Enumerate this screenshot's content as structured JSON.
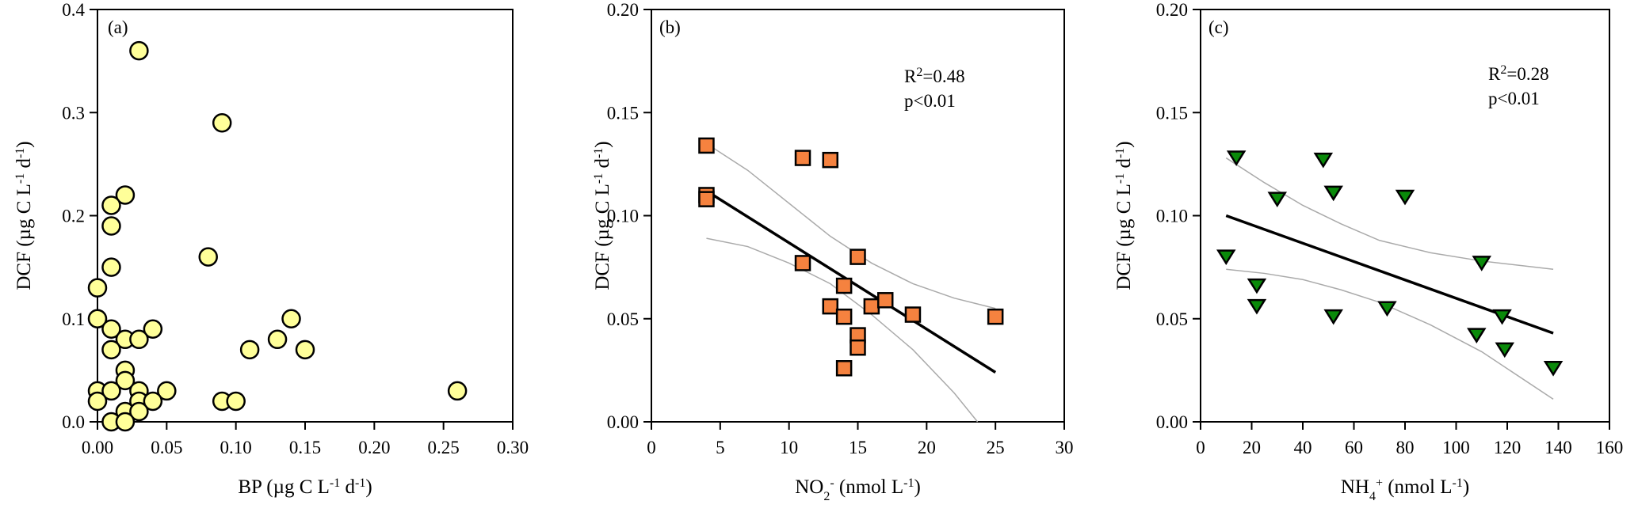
{
  "chart_data": [
    {
      "type": "scatter",
      "panel_label": "(a)",
      "xlabel": [
        {
          "t": "BP (µg C L"
        },
        {
          "t": "-1",
          "sup": true
        },
        {
          "t": " d"
        },
        {
          "t": "-1",
          "sup": true
        },
        {
          "t": ")"
        }
      ],
      "ylabel": [
        {
          "t": "DCF (µg C L"
        },
        {
          "t": "-1",
          "sup": true
        },
        {
          "t": " d"
        },
        {
          "t": "-1",
          "sup": true
        },
        {
          "t": ")"
        }
      ],
      "xlim": [
        0,
        0.3
      ],
      "ylim": [
        0,
        0.4
      ],
      "xticks": [
        "0.00",
        "0.05",
        "0.10",
        "0.15",
        "0.20",
        "0.25",
        "0.30"
      ],
      "yticks": [
        "0.0",
        "0.1",
        "0.2",
        "0.3",
        "0.4"
      ],
      "marker": "circle",
      "color": "#FFFF99",
      "x": [
        0.03,
        0.09,
        0.02,
        0.01,
        0.01,
        0.08,
        0.01,
        0.0,
        0.0,
        0.14,
        0.01,
        0.04,
        0.02,
        0.03,
        0.13,
        0.01,
        0.11,
        0.15,
        0.02,
        0.02,
        0.0,
        0.01,
        0.03,
        0.05,
        0.26,
        0.0,
        0.03,
        0.04,
        0.09,
        0.1,
        0.02,
        0.03,
        0.01,
        0.02
      ],
      "y": [
        0.36,
        0.29,
        0.22,
        0.21,
        0.19,
        0.16,
        0.15,
        0.13,
        0.1,
        0.1,
        0.09,
        0.09,
        0.08,
        0.08,
        0.08,
        0.07,
        0.07,
        0.07,
        0.05,
        0.04,
        0.03,
        0.03,
        0.03,
        0.03,
        0.03,
        0.02,
        0.02,
        0.02,
        0.02,
        0.02,
        0.01,
        0.01,
        0.0,
        0.0
      ]
    },
    {
      "type": "scatter",
      "panel_label": "(b)",
      "annotation": {
        "r2_prefix": "R",
        "r2_sup": "2",
        "r2_value": "=0.48",
        "p": "p<0.01"
      },
      "xlabel": [
        {
          "t": "NO"
        },
        {
          "t": "2",
          "sub": true
        },
        {
          "t": "-",
          "sup": true
        },
        {
          "t": " (nmol L"
        },
        {
          "t": "-1",
          "sup": true
        },
        {
          "t": ")"
        }
      ],
      "ylabel": [
        {
          "t": "DCF (µg C L"
        },
        {
          "t": "-1",
          "sup": true
        },
        {
          "t": " d"
        },
        {
          "t": "-1",
          "sup": true
        },
        {
          "t": ")"
        }
      ],
      "xlim": [
        0,
        30
      ],
      "ylim": [
        0,
        0.2
      ],
      "xticks": [
        "0",
        "5",
        "10",
        "15",
        "20",
        "25",
        "30"
      ],
      "yticks": [
        "0.00",
        "0.05",
        "0.10",
        "0.15",
        "0.20"
      ],
      "marker": "square",
      "color": "#F5823F",
      "x": [
        4,
        4,
        4,
        11,
        11,
        13,
        13,
        14,
        14,
        14,
        15,
        15,
        15,
        16,
        17,
        19,
        25
      ],
      "y": [
        0.134,
        0.11,
        0.108,
        0.128,
        0.077,
        0.127,
        0.056,
        0.066,
        0.051,
        0.026,
        0.08,
        0.042,
        0.036,
        0.056,
        0.059,
        0.052,
        0.051
      ],
      "fit": {
        "x": [
          4,
          25
        ],
        "y": [
          0.112,
          0.024
        ]
      },
      "ci_upper": {
        "x": [
          4,
          7,
          10,
          13,
          16,
          19,
          22,
          25
        ],
        "y": [
          0.135,
          0.122,
          0.106,
          0.09,
          0.077,
          0.067,
          0.06,
          0.055
        ]
      },
      "ci_lower": {
        "x": [
          4,
          7,
          10,
          13,
          16,
          19,
          22,
          23.7
        ],
        "y": [
          0.089,
          0.085,
          0.077,
          0.067,
          0.052,
          0.035,
          0.014,
          0.0
        ]
      }
    },
    {
      "type": "scatter",
      "panel_label": "(c)",
      "annotation": {
        "r2_prefix": "R",
        "r2_sup": "2",
        "r2_value": "=0.28",
        "p": "p<0.01"
      },
      "xlabel": [
        {
          "t": "NH"
        },
        {
          "t": "4",
          "sub": true
        },
        {
          "t": "+",
          "sup": true
        },
        {
          "t": " (nmol L"
        },
        {
          "t": "-1",
          "sup": true
        },
        {
          "t": ")"
        }
      ],
      "ylabel": [
        {
          "t": "DCF (µg C L"
        },
        {
          "t": "-1",
          "sup": true
        },
        {
          "t": " d"
        },
        {
          "t": "-1",
          "sup": true
        },
        {
          "t": ")"
        }
      ],
      "xlim": [
        0,
        160
      ],
      "ylim": [
        0,
        0.2
      ],
      "xticks": [
        "0",
        "20",
        "40",
        "60",
        "80",
        "100",
        "120",
        "140",
        "160"
      ],
      "yticks": [
        "0.00",
        "0.05",
        "0.10",
        "0.15",
        "0.20"
      ],
      "marker": "triangle-down",
      "color": "#0A8A0A",
      "x": [
        10,
        14,
        22,
        22,
        30,
        48,
        52,
        52,
        73,
        80,
        108,
        110,
        118,
        119,
        138
      ],
      "y": [
        0.08,
        0.128,
        0.066,
        0.056,
        0.108,
        0.127,
        0.111,
        0.051,
        0.055,
        0.109,
        0.042,
        0.077,
        0.051,
        0.035,
        0.026
      ],
      "fit": {
        "x": [
          10,
          138
        ],
        "y": [
          0.1,
          0.043
        ]
      },
      "ci_upper": {
        "x": [
          10,
          25,
          40,
          55,
          70,
          90,
          110,
          138
        ],
        "y": [
          0.128,
          0.116,
          0.105,
          0.096,
          0.088,
          0.082,
          0.078,
          0.074
        ]
      },
      "ci_lower": {
        "x": [
          10,
          25,
          40,
          55,
          70,
          90,
          110,
          138
        ],
        "y": [
          0.074,
          0.072,
          0.069,
          0.064,
          0.058,
          0.047,
          0.034,
          0.011
        ]
      }
    }
  ]
}
